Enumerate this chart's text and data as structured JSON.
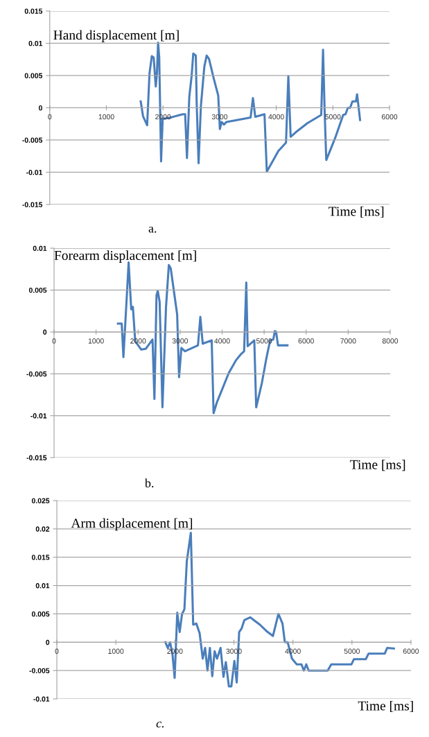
{
  "chart_data": [
    {
      "type": "line",
      "title": "Hand displacement [m]",
      "xlabel": "Time [ms]",
      "annotations": [
        "a."
      ],
      "grid": "y",
      "marker": "none",
      "line_style": "solid",
      "xlim": [
        0,
        6000
      ],
      "xticks": [
        0,
        1000,
        2000,
        3000,
        4000,
        5000,
        6000
      ],
      "ylim": [
        -0.015,
        0.015
      ],
      "yticks": [
        -0.015,
        -0.01,
        -0.005,
        0,
        0.005,
        0.01,
        0.015
      ],
      "series": [
        {
          "color": "#4a7ebb",
          "x": [
            1606,
            1647,
            1720,
            1761,
            1802,
            1835,
            1872,
            1892,
            1913,
            1933,
            1966,
            1994,
            2015,
            2137,
            2301,
            2350,
            2391,
            2423,
            2464,
            2505,
            2534,
            2579,
            2595,
            2628,
            2669,
            2730,
            2771,
            2812,
            2894,
            2975,
            3004,
            3036,
            3077,
            3118,
            3547,
            3588,
            3629,
            3792,
            3833,
            3935,
            4037,
            4172,
            4213,
            4254,
            4344,
            4548,
            4794,
            4826,
            4855,
            4883,
            5039,
            5182,
            5223,
            5264,
            5304,
            5345,
            5406,
            5427,
            5480
          ],
          "values": [
            0.001,
            -0.0013,
            -0.0027,
            0.0053,
            0.008,
            0.0078,
            0.0033,
            0.0053,
            0.0101,
            0.0078,
            -0.0083,
            -0.0017,
            -0.0017,
            -0.0015,
            -0.0011,
            -0.001,
            -0.001,
            -0.0078,
            0.0017,
            0.0049,
            0.0084,
            0.0081,
            0.0006,
            -0.0086,
            0.0003,
            0.0064,
            0.0081,
            0.0076,
            0.0046,
            0.0019,
            -0.0033,
            -0.0022,
            -0.0026,
            -0.0022,
            -0.0015,
            0.0015,
            -0.0014,
            -0.001,
            -0.0099,
            -0.0083,
            -0.0067,
            -0.0054,
            0.0049,
            -0.0045,
            -0.0038,
            -0.0024,
            -0.0011,
            0.009,
            -0.0008,
            -0.0081,
            -0.0047,
            -0.0011,
            -0.001,
            0.0,
            0.0,
            0.001,
            0.001,
            0.0021,
            -0.0019
          ]
        }
      ]
    },
    {
      "type": "line",
      "title": "Forearm displacement [m]",
      "xlabel": "Time [ms]",
      "annotations": [
        "b."
      ],
      "grid": "y",
      "marker": "none",
      "line_style": "solid",
      "xlim": [
        0,
        8000
      ],
      "xticks": [
        0,
        1000,
        2000,
        3000,
        4000,
        5000,
        6000,
        7000,
        8000
      ],
      "ylim": [
        -0.015,
        0.01
      ],
      "yticks": [
        -0.015,
        -0.01,
        -0.005,
        0,
        0.005,
        0.01
      ],
      "series": [
        {
          "color": "#4a7ebb",
          "x": [
            1521,
            1611,
            1651,
            1724,
            1775,
            1837,
            1876,
            1932,
            2073,
            2186,
            2344,
            2389,
            2439,
            2468,
            2513,
            2580,
            2665,
            2732,
            2777,
            2930,
            2975,
            3031,
            3115,
            3425,
            3482,
            3538,
            3752,
            3797,
            3876,
            3989,
            4158,
            4327,
            4439,
            4524,
            4575,
            4608,
            4766,
            4811,
            4946,
            5059,
            5144,
            5217,
            5256,
            5285,
            5330,
            5555
          ],
          "values": [
            0.001,
            0.001,
            -0.003,
            0.0036,
            0.0083,
            0.0027,
            0.003,
            -0.0011,
            -0.0021,
            -0.002,
            -0.0009,
            -0.008,
            0.0044,
            0.0049,
            0.0036,
            -0.009,
            0.003,
            0.008,
            0.0076,
            0.0021,
            -0.0054,
            -0.0019,
            -0.0023,
            -0.0016,
            0.0018,
            -0.0014,
            -0.001,
            -0.0097,
            -0.0084,
            -0.007,
            -0.0049,
            -0.0034,
            -0.0027,
            -0.0023,
            0.0059,
            -0.0017,
            -0.001,
            -0.009,
            -0.0061,
            -0.003,
            -0.001,
            -0.0009,
            0.0001,
            0.0,
            -0.0016,
            -0.0016
          ]
        }
      ]
    },
    {
      "type": "line",
      "title": "Arm displacement [m]",
      "xlabel": "Time [ms]",
      "annotations": [
        "c."
      ],
      "grid": "y",
      "marker": "none",
      "line_style": "solid",
      "xlim": [
        0,
        6000
      ],
      "xticks": [
        0,
        1000,
        2000,
        3000,
        4000,
        5000,
        6000
      ],
      "ylim": [
        -0.01,
        0.025
      ],
      "yticks": [
        -0.01,
        -0.005,
        0,
        0.005,
        0.01,
        0.015,
        0.02,
        0.025
      ],
      "series": [
        {
          "color": "#4a7ebb",
          "x": [
            1839,
            1879,
            1919,
            1960,
            1996,
            2040,
            2081,
            2121,
            2161,
            2202,
            2270,
            2310,
            2363,
            2419,
            2472,
            2512,
            2552,
            2593,
            2633,
            2673,
            2714,
            2774,
            2823,
            2863,
            2915,
            2956,
            3008,
            3048,
            3089,
            3129,
            3177,
            3278,
            3339,
            3440,
            3560,
            3661,
            3754,
            3823,
            3863,
            3911,
            3984,
            4065,
            4145,
            4185,
            4226,
            4266,
            4589,
            4649,
            4992,
            5032,
            5234,
            5282,
            5556,
            5597,
            5710
          ],
          "values": [
            0.0,
            -0.001,
            0.0,
            -0.0022,
            -0.0063,
            0.0052,
            0.0018,
            0.005,
            0.0058,
            0.0143,
            0.0193,
            0.0031,
            0.0033,
            0.0016,
            -0.0029,
            -0.001,
            -0.005,
            -0.001,
            -0.006,
            -0.0016,
            -0.0029,
            -0.001,
            -0.0061,
            -0.0035,
            -0.0078,
            -0.0078,
            -0.0033,
            -0.0071,
            0.0018,
            0.0024,
            0.0039,
            0.0044,
            0.0039,
            0.0031,
            0.0019,
            0.0011,
            0.005,
            0.0033,
            0.0,
            0.0,
            -0.0029,
            -0.0039,
            -0.0039,
            -0.005,
            -0.0039,
            -0.005,
            -0.005,
            -0.0039,
            -0.0039,
            -0.003,
            -0.003,
            -0.002,
            -0.002,
            -0.001,
            -0.0011
          ]
        }
      ]
    }
  ]
}
